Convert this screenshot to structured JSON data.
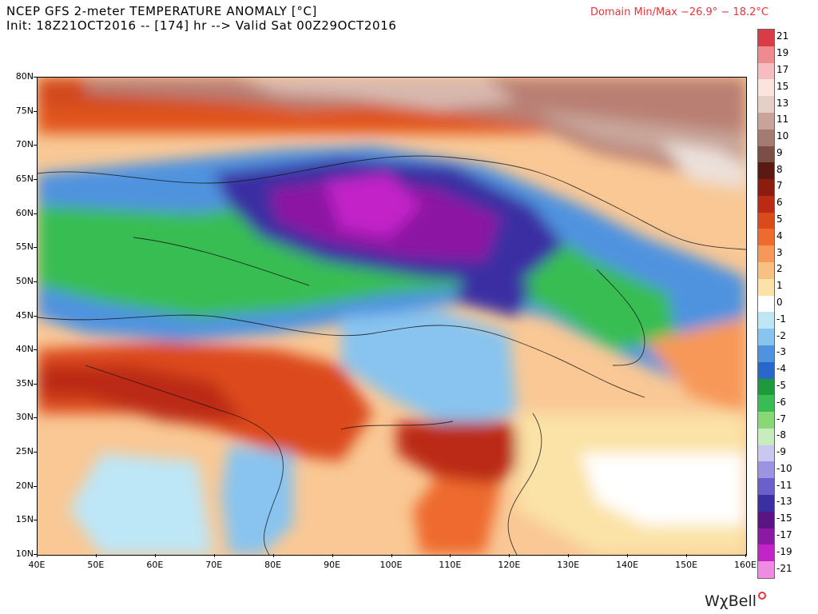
{
  "header": {
    "title": "NCEP GFS 2-meter TEMPERATURE ANOMALY [°C]",
    "subtitle": "Init: 18Z21OCT2016 -- [174] hr --> Valid Sat 00Z29OCT2016",
    "minmax": "Domain Min/Max −26.9° − 18.2°C"
  },
  "axes": {
    "lat_labels": [
      "80N",
      "75N",
      "70N",
      "65N",
      "60N",
      "55N",
      "50N",
      "45N",
      "40N",
      "35N",
      "30N",
      "25N",
      "20N",
      "15N",
      "10N"
    ],
    "lon_labels": [
      "40E",
      "50E",
      "60E",
      "70E",
      "80E",
      "90E",
      "100E",
      "110E",
      "120E",
      "130E",
      "140E",
      "150E",
      "160E"
    ]
  },
  "legend": {
    "labels": [
      "21",
      "19",
      "17",
      "15",
      "13",
      "11",
      "10",
      "9",
      "8",
      "7",
      "6",
      "5",
      "4",
      "3",
      "2",
      "1",
      "0",
      "-1",
      "-2",
      "-3",
      "-4",
      "-5",
      "-6",
      "-7",
      "-8",
      "-9",
      "-10",
      "-11",
      "-13",
      "-15",
      "-17",
      "-19",
      "-21"
    ],
    "colors": [
      "#d93c47",
      "#ee8b91",
      "#f6bcc0",
      "#fbe3e0",
      "#e7cfc8",
      "#c7a39a",
      "#a57a6f",
      "#7c4f45",
      "#5a1a12",
      "#8e1b10",
      "#bb2a14",
      "#dc4a1c",
      "#ee6a2e",
      "#f79858",
      "#f9c084",
      "#fbe2a6",
      "#ffffff",
      "#bde6f6",
      "#88c4ef",
      "#4f93df",
      "#2b66cc",
      "#1c9a3c",
      "#38bd52",
      "#88d877",
      "#c7ecbd",
      "#c9c9ef",
      "#9c93e1",
      "#6a5fcd",
      "#3a2fa3",
      "#5a1585",
      "#8c19a3",
      "#c224c8",
      "#f08be3"
    ]
  },
  "brand": {
    "name": "WχBell"
  }
}
